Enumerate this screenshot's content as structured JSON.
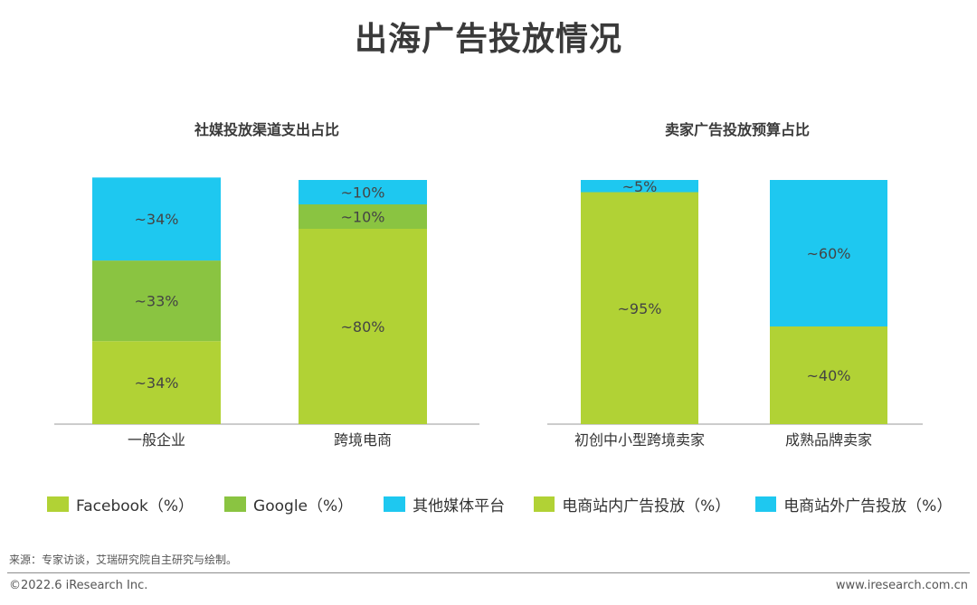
{
  "page": {
    "title": "出海广告投放情况"
  },
  "colors": {
    "facebook": "#b1d235",
    "google": "#8ac441",
    "other_media": "#1ec8f0",
    "onsite": "#b1d235",
    "offsite": "#1ec8f0"
  },
  "chart_data": [
    {
      "type": "bar",
      "stacked": true,
      "title": "社媒投放渠道支出占比",
      "categories": [
        "一般企业",
        "跨境电商"
      ],
      "series": [
        {
          "name": "Facebook（%）",
          "values": [
            34,
            80
          ],
          "labels": [
            "~34%",
            "~80%"
          ]
        },
        {
          "name": "Google（%）",
          "values": [
            33,
            10
          ],
          "labels": [
            "~33%",
            "~10%"
          ]
        },
        {
          "name": "其他媒体平台",
          "values": [
            34,
            10
          ],
          "labels": [
            "~34%",
            "~10%"
          ]
        }
      ],
      "ylim": [
        0,
        100
      ],
      "grid": false,
      "legend": "bottom"
    },
    {
      "type": "bar",
      "stacked": true,
      "title": "卖家广告投放预算占比",
      "categories": [
        "初创中小型跨境卖家",
        "成熟品牌卖家"
      ],
      "series": [
        {
          "name": "电商站内广告投放（%）",
          "values": [
            95,
            40
          ],
          "labels": [
            "~95%",
            "~40%"
          ]
        },
        {
          "name": "电商站外广告投放（%）",
          "values": [
            5,
            60
          ],
          "labels": [
            "~5%",
            "~60%"
          ]
        }
      ],
      "ylim": [
        0,
        100
      ],
      "grid": false,
      "legend": "bottom"
    }
  ],
  "footer": {
    "source": "来源：专家访谈，艾瑞研究院自主研究与绘制。",
    "copyright": "©2022.6 iResearch Inc.",
    "website": "www.iresearch.com.cn"
  }
}
